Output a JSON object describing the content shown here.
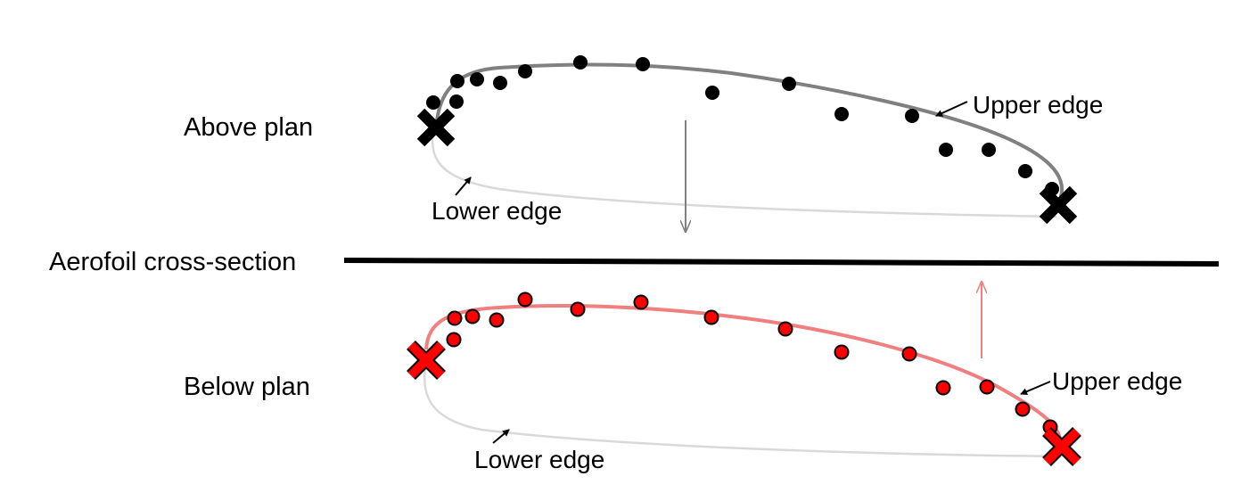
{
  "labels": {
    "above_plan": "Above plan",
    "below_plan": "Below plan",
    "cross_section": "Aerofoil cross-section",
    "upper_edge_above": "Upper edge",
    "lower_edge_above": "Lower edge",
    "upper_edge_below": "Upper edge",
    "lower_edge_below": "Lower edge"
  },
  "colors": {
    "above_points": "#000000",
    "above_upper_curve": "#808080",
    "below_points": "#ff0000",
    "below_upper_curve": "#f08080",
    "lower_curve": "#d9d9d9",
    "up_arrow": "#f08080",
    "down_arrow": "#808080",
    "section_line": "#000000"
  },
  "markers": {
    "endpoints": "x-cross",
    "samples": "dot"
  }
}
